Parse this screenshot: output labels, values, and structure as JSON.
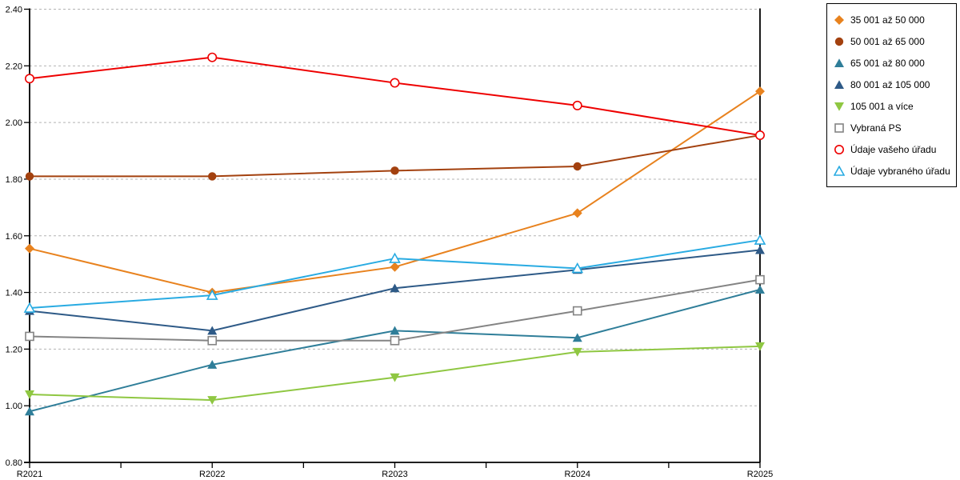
{
  "page": {
    "background": "#FFFFFF"
  },
  "chart_data": {
    "type": "line",
    "title": "",
    "xlabel": "",
    "ylabel": "",
    "categories": [
      "R2021",
      "R2022",
      "R2023",
      "R2024",
      "R2025"
    ],
    "ylim": [
      0.8,
      2.4
    ],
    "ytick_step": 0.2,
    "ytick_labels": [
      "0.80",
      "1.00",
      "1.20",
      "1.40",
      "1.60",
      "1.80",
      "2.00",
      "2.20",
      "2.40"
    ],
    "grid": {
      "horizontal": "dashed",
      "vertical": false,
      "color": "#B3B3B3"
    },
    "axis_color": "#000000",
    "plot_right_border": true,
    "x_minor_ticks_at_midpoints": true,
    "legend": {
      "position": "top-right",
      "border_color": "#000000",
      "background": "#FFFFFF"
    },
    "series": [
      {
        "name": "35 001 až 50 000",
        "color": "#E8821E",
        "marker": "diamond",
        "marker_style": "filled",
        "values": [
          1.555,
          1.4,
          1.49,
          1.68,
          2.11
        ]
      },
      {
        "name": "50 001 až 65 000",
        "color": "#A3410F",
        "marker": "circle",
        "marker_style": "filled",
        "values": [
          1.81,
          1.81,
          1.83,
          1.845,
          1.955
        ]
      },
      {
        "name": "65 001 až 80 000",
        "color": "#2F7E99",
        "marker": "triangle-up",
        "marker_style": "filled",
        "values": [
          0.98,
          1.145,
          1.265,
          1.24,
          1.41
        ]
      },
      {
        "name": "80 001 až 105 000",
        "color": "#2E5A87",
        "marker": "triangle-up",
        "marker_style": "filled",
        "values": [
          1.335,
          1.265,
          1.415,
          1.48,
          1.55
        ]
      },
      {
        "name": "105 001 a více",
        "color": "#8FC742",
        "marker": "triangle-down",
        "marker_style": "filled",
        "values": [
          1.04,
          1.02,
          1.1,
          1.19,
          1.21
        ]
      },
      {
        "name": "Vybraná PS",
        "color": "#848484",
        "marker": "square",
        "marker_style": "open",
        "values": [
          1.245,
          1.23,
          1.23,
          1.335,
          1.445
        ]
      },
      {
        "name": "Údaje vašeho úřadu",
        "color": "#EE0000",
        "marker": "circle",
        "marker_style": "open",
        "values": [
          2.155,
          2.23,
          2.14,
          2.06,
          1.955
        ]
      },
      {
        "name": "Údaje vybraného úřadu",
        "color": "#29ABE2",
        "marker": "triangle-up",
        "marker_style": "open",
        "values": [
          1.345,
          1.39,
          1.52,
          1.485,
          1.585
        ]
      }
    ]
  }
}
